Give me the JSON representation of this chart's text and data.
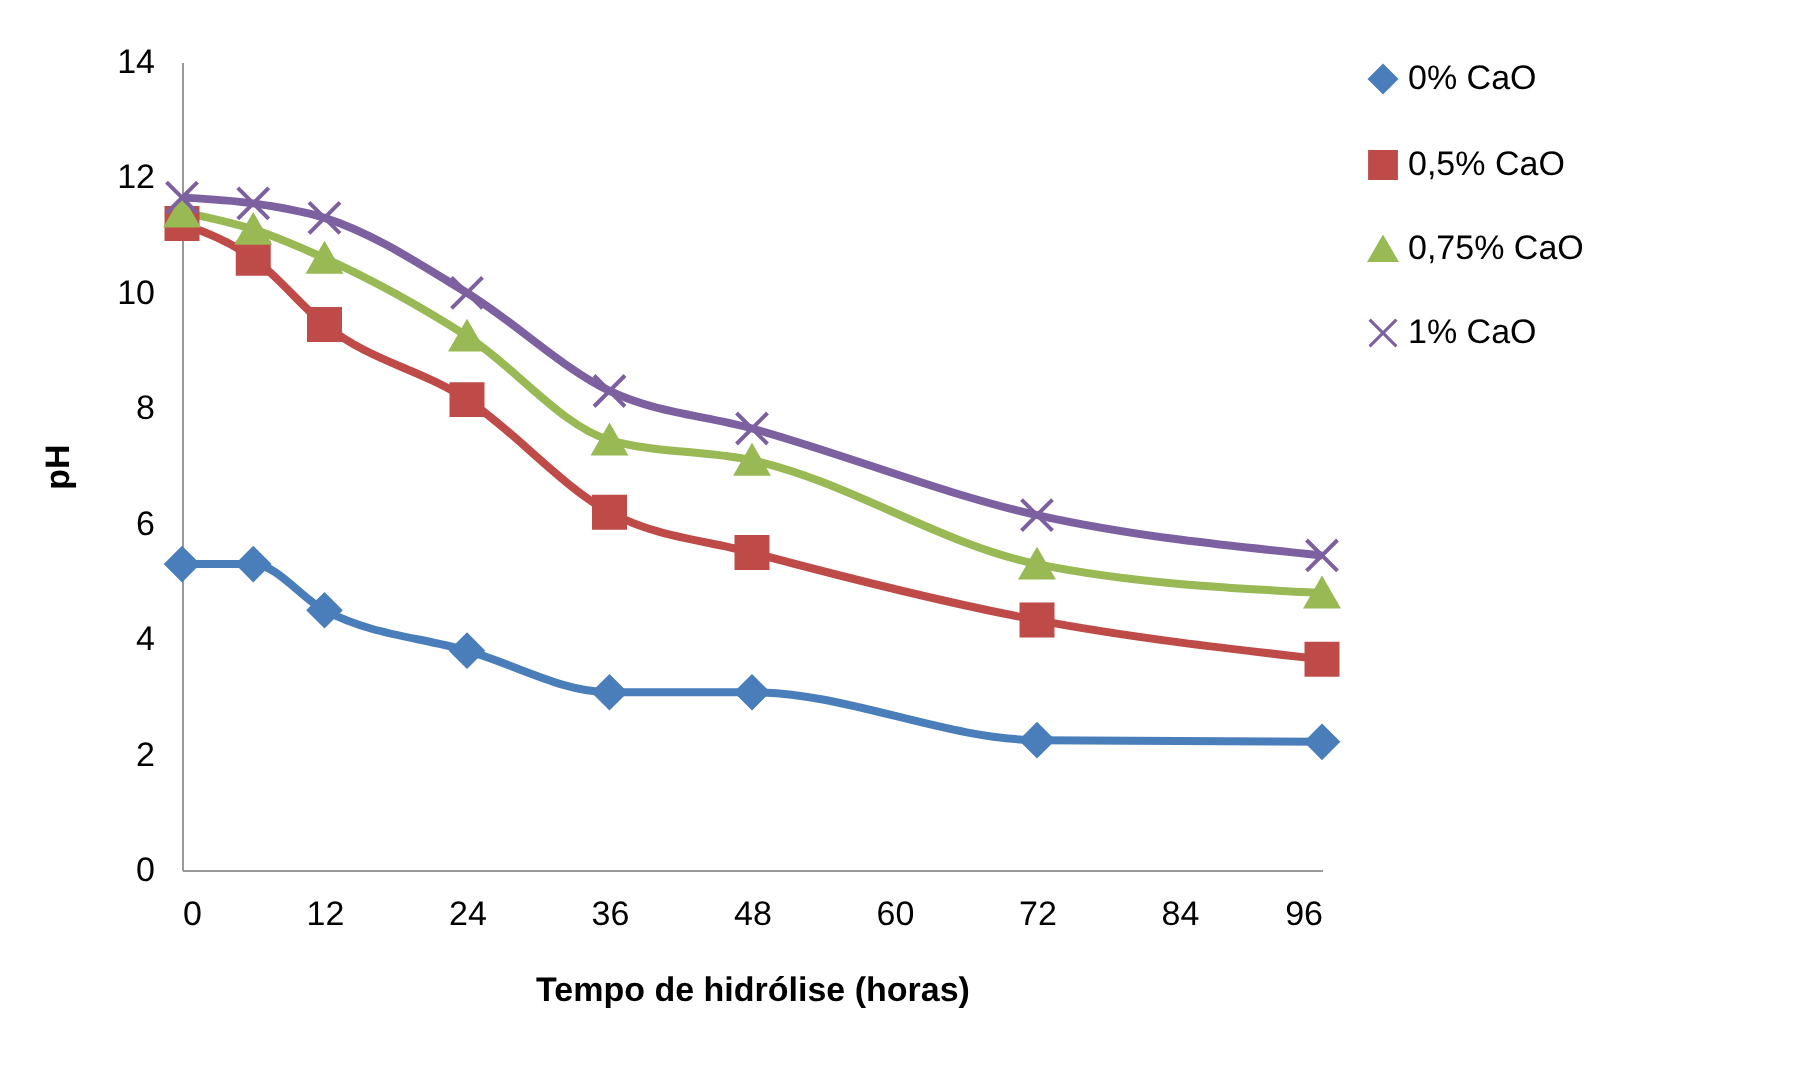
{
  "chart_data": {
    "type": "line",
    "xlabel": "Tempo de hidrólise (horas)",
    "ylabel": "pH",
    "x": [
      0,
      6,
      12,
      24,
      36,
      48,
      72,
      96
    ],
    "xlim": [
      0,
      96
    ],
    "xticks": [
      0,
      12,
      24,
      36,
      48,
      60,
      72,
      84,
      96
    ],
    "ylim": [
      0,
      14
    ],
    "yticks": [
      0,
      2,
      4,
      6,
      8,
      10,
      12,
      14
    ],
    "grid": false,
    "legend": "right",
    "line_style": "solid",
    "series": [
      {
        "name": "0% CaO",
        "color": "#4a7ebb",
        "marker": "diamond",
        "values": [
          5.3,
          5.3,
          4.5,
          3.8,
          3.08,
          3.08,
          2.25,
          2.22
        ]
      },
      {
        "name": "0,5% CaO",
        "color": "#be4b48",
        "marker": "square",
        "values": [
          11.2,
          10.6,
          9.45,
          8.15,
          6.2,
          5.5,
          4.33,
          3.65
        ]
      },
      {
        "name": "0,75% CaO",
        "color": "#98b954",
        "marker": "triangle",
        "values": [
          11.4,
          11.1,
          10.6,
          9.25,
          7.45,
          7.1,
          5.3,
          4.8
        ]
      },
      {
        "name": "1% CaO",
        "color": "#7d60a0",
        "marker": "cross",
        "values": [
          11.65,
          11.55,
          11.3,
          10.0,
          8.3,
          7.65,
          6.15,
          5.45
        ]
      }
    ]
  }
}
